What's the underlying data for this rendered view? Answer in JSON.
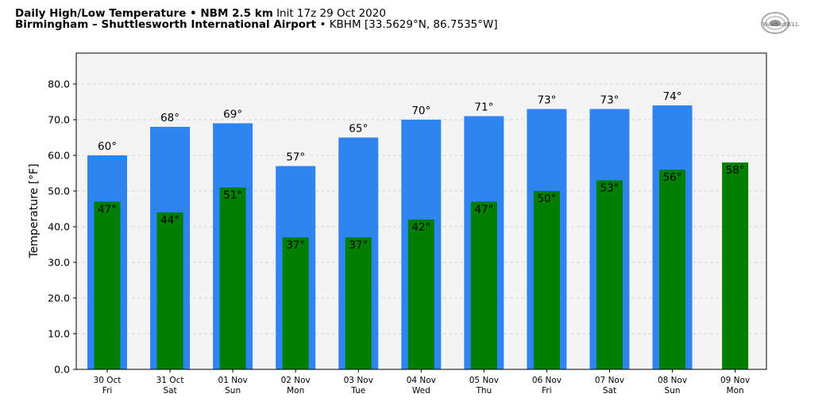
{
  "header": {
    "title_bold": "Daily High/Low Temperature • NBM 2.5 km",
    "title_init": "Init 17z 29 Oct 2020",
    "location_bold": "Birmingham – Shuttlesworth International Airport",
    "location_rest": "• KBHM [33.5629°N, 86.7535°W]"
  },
  "logo": {
    "text": "WeatherBELL"
  },
  "colors": {
    "high_bar": "#2e84f0",
    "low_bar": "#007f00",
    "plot_bg": "#f4f4f4"
  },
  "chart_data": {
    "type": "bar",
    "ylabel": "Temperature [°F]",
    "ylim": [
      0,
      80
    ],
    "yticks": [
      "0.0",
      "10.0",
      "20.0",
      "30.0",
      "40.0",
      "50.0",
      "60.0",
      "70.0",
      "80.0"
    ],
    "grid": true,
    "categories": [
      {
        "date": "30 Oct",
        "day": "Fri"
      },
      {
        "date": "31 Oct",
        "day": "Sat"
      },
      {
        "date": "01 Nov",
        "day": "Sun"
      },
      {
        "date": "02 Nov",
        "day": "Mon"
      },
      {
        "date": "03 Nov",
        "day": "Tue"
      },
      {
        "date": "04 Nov",
        "day": "Wed"
      },
      {
        "date": "05 Nov",
        "day": "Thu"
      },
      {
        "date": "06 Nov",
        "day": "Fri"
      },
      {
        "date": "07 Nov",
        "day": "Sat"
      },
      {
        "date": "08 Nov",
        "day": "Sun"
      },
      {
        "date": "09 Nov",
        "day": "Mon"
      }
    ],
    "series": [
      {
        "values": [
          60,
          68,
          69,
          57,
          65,
          70,
          71,
          73,
          73,
          74,
          null
        ],
        "labels": [
          "60°",
          "68°",
          "69°",
          "57°",
          "65°",
          "70°",
          "71°",
          "73°",
          "73°",
          "74°",
          null
        ]
      },
      {
        "values": [
          47,
          44,
          51,
          37,
          37,
          42,
          47,
          50,
          53,
          56,
          58
        ],
        "labels": [
          "47°",
          "44°",
          "51°",
          "37°",
          "37°",
          "42°",
          "47°",
          "50°",
          "53°",
          "56°",
          "58°"
        ]
      }
    ]
  }
}
